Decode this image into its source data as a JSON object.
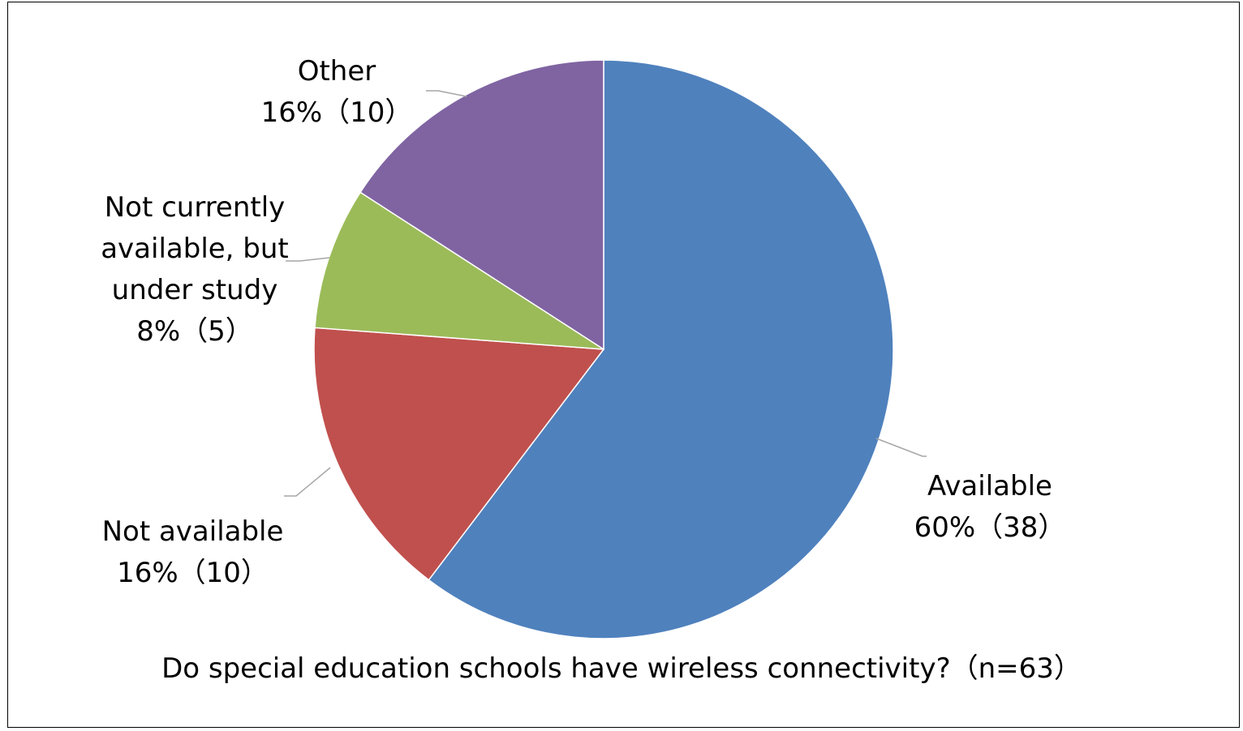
{
  "chart_data": {
    "type": "pie",
    "title": "Do special education schools have wireless connectivity?（n=63）",
    "n": 63,
    "slices": [
      {
        "name": "Available",
        "percent_label": "60%（38）",
        "count": 38,
        "percent": 60,
        "color": "#4F81BD"
      },
      {
        "name": "Not available",
        "percent_label": "16%（10）",
        "count": 10,
        "percent": 16,
        "color": "#C0504D"
      },
      {
        "name": "Not currently available, but under study",
        "percent_label": "8%（5）",
        "count": 5,
        "percent": 8,
        "color": "#9BBB59"
      },
      {
        "name": "Other",
        "percent_label": "16%（10）",
        "count": 10,
        "percent": 16,
        "color": "#8064A2"
      }
    ]
  }
}
